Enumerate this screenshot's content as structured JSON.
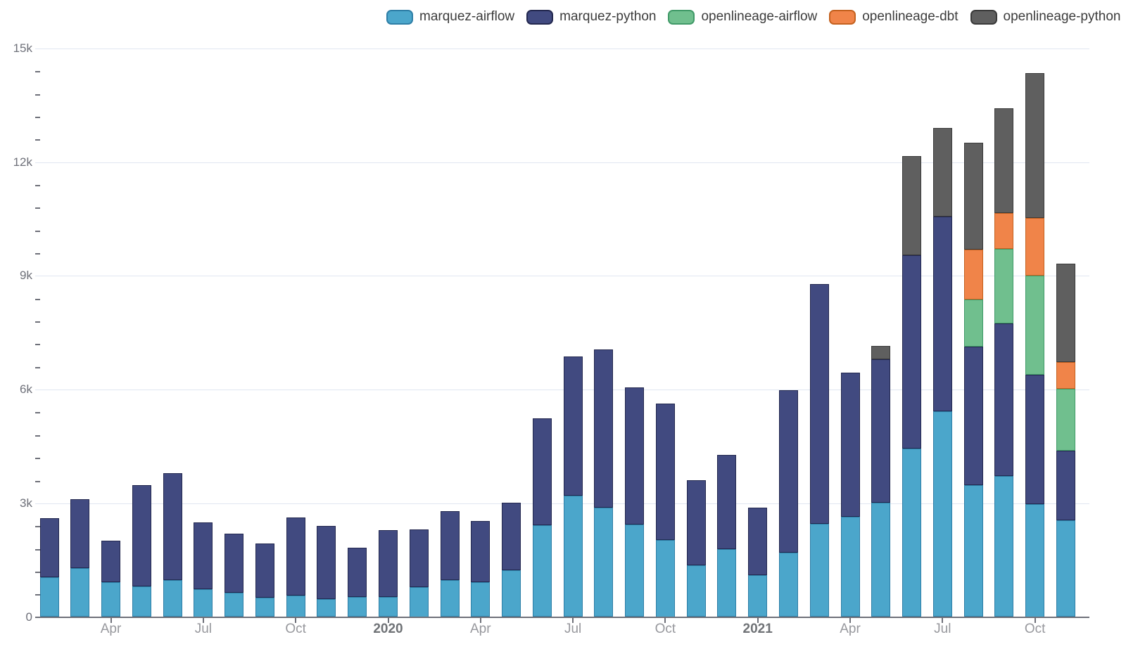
{
  "chart_data": {
    "type": "bar",
    "stacked": true,
    "title": "",
    "legend_position": "top",
    "grid": true,
    "x": [
      "Feb 2019",
      "Mar 2019",
      "Apr 2019",
      "May 2019",
      "Jun 2019",
      "Jul 2019",
      "Aug 2019",
      "Sep 2019",
      "Oct 2019",
      "Nov 2019",
      "Dec 2019",
      "Jan 2020",
      "Feb 2020",
      "Mar 2020",
      "Apr 2020",
      "May 2020",
      "Jun 2020",
      "Jul 2020",
      "Aug 2020",
      "Sep 2020",
      "Oct 2020",
      "Nov 2020",
      "Dec 2020",
      "Jan 2021",
      "Feb 2021",
      "Mar 2021",
      "Apr 2021",
      "May 2021",
      "Jun 2021",
      "Jul 2021",
      "Aug 2021",
      "Sep 2021",
      "Oct 2021",
      "Nov 2021"
    ],
    "series": [
      {
        "name": "marquez-airflow",
        "color": "#4BA6CB",
        "border_color": "#2E7EA6",
        "values": [
          1040,
          1290,
          910,
          810,
          975,
          735,
          640,
          510,
          560,
          480,
          530,
          530,
          790,
          975,
          920,
          1230,
          2420,
          3205,
          2885,
          2430,
          2040,
          1365,
          1790,
          1100,
          1690,
          2460,
          2650,
          3020,
          4445,
          5435,
          3485,
          3720,
          2975,
          2555
        ]
      },
      {
        "name": "marquez-python",
        "color": "#414A80",
        "border_color": "#23284F",
        "values": [
          1570,
          1810,
          1110,
          2670,
          2815,
          1770,
          1555,
          1430,
          2065,
          1925,
          1305,
          1755,
          1520,
          1820,
          1615,
          1790,
          2820,
          3670,
          4180,
          3625,
          3590,
          2245,
          2490,
          1790,
          4285,
          6320,
          3795,
          3780,
          5100,
          5125,
          3655,
          4025,
          3420,
          1830
        ]
      },
      {
        "name": "openlineage-airflow",
        "color": "#70BF8E",
        "border_color": "#419A68",
        "values": [
          0,
          0,
          0,
          0,
          0,
          0,
          0,
          0,
          0,
          0,
          0,
          0,
          0,
          0,
          0,
          0,
          0,
          0,
          0,
          0,
          0,
          0,
          0,
          0,
          0,
          0,
          0,
          0,
          0,
          0,
          1240,
          1965,
          2610,
          1645
        ]
      },
      {
        "name": "openlineage-dbt",
        "color": "#F08449",
        "border_color": "#C4611F",
        "values": [
          0,
          0,
          0,
          0,
          0,
          0,
          0,
          0,
          0,
          0,
          0,
          0,
          0,
          0,
          0,
          0,
          0,
          0,
          0,
          0,
          0,
          0,
          0,
          0,
          0,
          0,
          0,
          0,
          0,
          0,
          1315,
          950,
          1520,
          705
        ]
      },
      {
        "name": "openlineage-python",
        "color": "#5F5F5F",
        "border_color": "#3A3A3A",
        "values": [
          0,
          0,
          0,
          0,
          0,
          0,
          0,
          0,
          0,
          0,
          0,
          0,
          0,
          0,
          0,
          0,
          0,
          0,
          0,
          0,
          0,
          0,
          0,
          0,
          0,
          0,
          0,
          350,
          2615,
          2340,
          2825,
          2760,
          3825,
          2590
        ]
      }
    ],
    "y_axis": {
      "min": 0,
      "max": 15000,
      "major_step": 3000,
      "minor_step": 600,
      "tick_labels": [
        "0",
        "3k",
        "6k",
        "9k",
        "12k",
        "15k"
      ]
    },
    "x_ticks": [
      {
        "index": 2,
        "label": "Apr",
        "year": false
      },
      {
        "index": 5,
        "label": "Jul",
        "year": false
      },
      {
        "index": 8,
        "label": "Oct",
        "year": false
      },
      {
        "index": 11,
        "label": "2020",
        "year": true
      },
      {
        "index": 14,
        "label": "Apr",
        "year": false
      },
      {
        "index": 17,
        "label": "Jul",
        "year": false
      },
      {
        "index": 20,
        "label": "Oct",
        "year": false
      },
      {
        "index": 23,
        "label": "2021",
        "year": true
      },
      {
        "index": 26,
        "label": "Apr",
        "year": false
      },
      {
        "index": 29,
        "label": "Jul",
        "year": false
      },
      {
        "index": 32,
        "label": "Oct",
        "year": false
      }
    ],
    "colors": {
      "background": "#FFFFFF",
      "gridline": "#E0E6F1",
      "axis": "#6E7079",
      "y_label": "#6E7079",
      "month_label": "#97989D",
      "year_label": "#6F7276"
    }
  }
}
